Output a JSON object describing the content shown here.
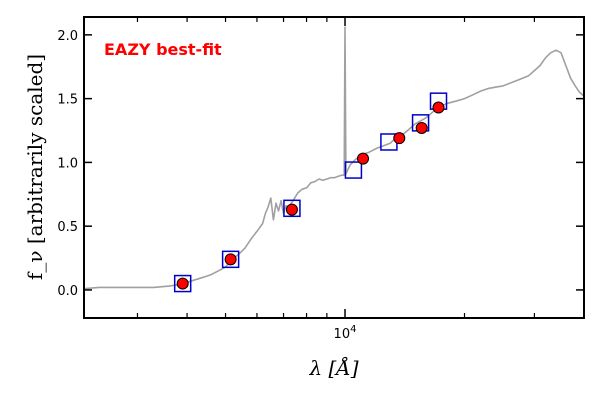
{
  "chart_data": {
    "type": "line",
    "xlabel": "λ [Å]",
    "ylabel": "f_ν [arbitrarily scaled]",
    "xscale": "log",
    "xlim": [
      2200,
      40000
    ],
    "ylim": [
      -0.22,
      2.14
    ],
    "y_ticks": [
      0.0,
      0.5,
      1.0,
      1.5,
      2.0
    ],
    "y_tick_labels": [
      "0.0",
      "0.5",
      "1.0",
      "1.5",
      "2.0"
    ],
    "x_tick_major": [
      10000
    ],
    "x_tick_major_labels": [
      "10^4"
    ],
    "x_tick_minor": [
      3000,
      4000,
      5000,
      6000,
      7000,
      8000,
      9000,
      20000,
      30000
    ],
    "grid": false,
    "annotation": {
      "text": "EAZY best-fit",
      "color": "#ff0000"
    },
    "series": [
      {
        "type": "line",
        "color": "#a0a0a0",
        "x": [
          2200,
          2400,
          2700,
          3000,
          3300,
          3600,
          3800,
          4000,
          4200,
          4400,
          4600,
          4800,
          5000,
          5200,
          5400,
          5600,
          5800,
          6000,
          6200,
          6300,
          6400,
          6500,
          6600,
          6700,
          6800,
          6900,
          7000,
          7100,
          7200,
          7400,
          7600,
          7800,
          8000,
          8200,
          8400,
          8600,
          8800,
          9000,
          9200,
          9400,
          9600,
          9800,
          9950,
          10000,
          10050,
          10300,
          10600,
          11000,
          11500,
          12000,
          12500,
          13000,
          13500,
          14000,
          14500,
          15000,
          16000,
          17000,
          18000,
          19000,
          20000,
          21000,
          22000,
          23000,
          24000,
          25000,
          26000,
          27000,
          28000,
          29000,
          30000,
          31000,
          32000,
          33000,
          34000,
          35000,
          36000,
          37000,
          38000,
          39000,
          40000
        ],
        "y": [
          0.01,
          0.02,
          0.02,
          0.02,
          0.02,
          0.03,
          0.04,
          0.06,
          0.08,
          0.1,
          0.12,
          0.15,
          0.18,
          0.24,
          0.28,
          0.33,
          0.4,
          0.46,
          0.52,
          0.6,
          0.65,
          0.72,
          0.55,
          0.68,
          0.62,
          0.7,
          0.6,
          0.66,
          0.65,
          0.7,
          0.76,
          0.79,
          0.8,
          0.84,
          0.85,
          0.87,
          0.86,
          0.87,
          0.88,
          0.88,
          0.89,
          0.9,
          0.9,
          2.06,
          0.91,
          0.98,
          1.02,
          1.06,
          1.08,
          1.11,
          1.13,
          1.15,
          1.2,
          1.22,
          1.26,
          1.3,
          1.35,
          1.42,
          1.46,
          1.48,
          1.5,
          1.53,
          1.56,
          1.58,
          1.59,
          1.6,
          1.62,
          1.64,
          1.66,
          1.68,
          1.72,
          1.76,
          1.82,
          1.86,
          1.88,
          1.86,
          1.76,
          1.66,
          1.6,
          1.55,
          1.52
        ]
      },
      {
        "type": "scatter",
        "marker": "square",
        "color": "#0000cc",
        "x": [
          3900,
          5150,
          7350,
          10500,
          12900,
          15500,
          17200
        ],
        "y": [
          0.05,
          0.24,
          0.64,
          0.94,
          1.16,
          1.31,
          1.48
        ]
      },
      {
        "type": "scatter",
        "marker": "circle",
        "color": "#ff0000",
        "x": [
          3900,
          5150,
          7350,
          11100,
          13700,
          15600,
          17200
        ],
        "y": [
          0.05,
          0.24,
          0.63,
          1.03,
          1.19,
          1.27,
          1.43
        ]
      }
    ]
  }
}
